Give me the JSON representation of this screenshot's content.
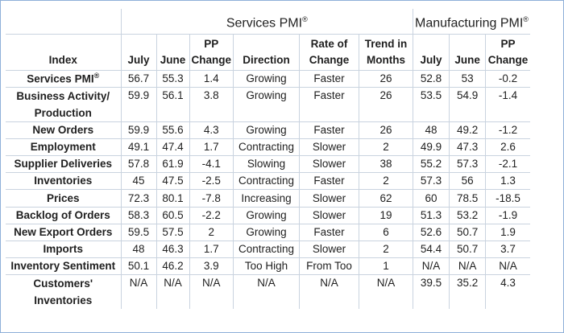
{
  "groups": {
    "services": "Services PMI",
    "manufacturing": "Manufacturing PMI",
    "reg": "®"
  },
  "headers": {
    "index": "Index",
    "july": "July",
    "june": "June",
    "pp_change": "PP Change",
    "direction": "Direction",
    "rate_of_change": "Rate of Change",
    "trend": "Trend in Months",
    "m_july": "July",
    "m_june": "June",
    "m_pp_change": "PP Change"
  },
  "rows": [
    {
      "index": "Services PMI",
      "sup": "®",
      "july": "56.7",
      "june": "55.3",
      "pp": "1.4",
      "direction": "Growing",
      "rate": "Faster",
      "trend": "26",
      "m_july": "52.8",
      "m_june": "53",
      "m_pp": "-0.2"
    },
    {
      "index": "Business Activity/ Production",
      "july": "59.9",
      "june": "56.1",
      "pp": "3.8",
      "direction": "Growing",
      "rate": "Faster",
      "trend": "26",
      "m_july": "53.5",
      "m_june": "54.9",
      "m_pp": "-1.4"
    },
    {
      "index": "New Orders",
      "july": "59.9",
      "june": "55.6",
      "pp": "4.3",
      "direction": "Growing",
      "rate": "Faster",
      "trend": "26",
      "m_july": "48",
      "m_june": "49.2",
      "m_pp": "-1.2"
    },
    {
      "index": "Employment",
      "july": "49.1",
      "june": "47.4",
      "pp": "1.7",
      "direction": "Contracting",
      "rate": "Slower",
      "trend": "2",
      "m_july": "49.9",
      "m_june": "47.3",
      "m_pp": "2.6"
    },
    {
      "index": "Supplier Deliveries",
      "july": "57.8",
      "june": "61.9",
      "pp": "-4.1",
      "direction": "Slowing",
      "rate": "Slower",
      "trend": "38",
      "m_july": "55.2",
      "m_june": "57.3",
      "m_pp": "-2.1"
    },
    {
      "index": "Inventories",
      "july": "45",
      "june": "47.5",
      "pp": "-2.5",
      "direction": "Contracting",
      "rate": "Faster",
      "trend": "2",
      "m_july": "57.3",
      "m_june": "56",
      "m_pp": "1.3"
    },
    {
      "index": "Prices",
      "july": "72.3",
      "june": "80.1",
      "pp": "-7.8",
      "direction": "Increasing",
      "rate": "Slower",
      "trend": "62",
      "m_july": "60",
      "m_june": "78.5",
      "m_pp": "-18.5"
    },
    {
      "index": "Backlog of Orders",
      "july": "58.3",
      "june": "60.5",
      "pp": "-2.2",
      "direction": "Growing",
      "rate": "Slower",
      "trend": "19",
      "m_july": "51.3",
      "m_june": "53.2",
      "m_pp": "-1.9"
    },
    {
      "index": "New Export Orders",
      "july": "59.5",
      "june": "57.5",
      "pp": "2",
      "direction": "Growing",
      "rate": "Faster",
      "trend": "6",
      "m_july": "52.6",
      "m_june": "50.7",
      "m_pp": "1.9"
    },
    {
      "index": "Imports",
      "july": "48",
      "june": "46.3",
      "pp": "1.7",
      "direction": "Contracting",
      "rate": "Slower",
      "trend": "2",
      "m_july": "54.4",
      "m_june": "50.7",
      "m_pp": "3.7"
    },
    {
      "index": "Inventory Sentiment",
      "july": "50.1",
      "june": "46.2",
      "pp": "3.9",
      "direction": "Too High",
      "rate": "From Too",
      "trend": "1",
      "m_july": "N/A",
      "m_june": "N/A",
      "m_pp": "N/A"
    },
    {
      "index": "Customers' Inventories",
      "july": "N/A",
      "june": "N/A",
      "pp": "N/A",
      "direction": "N/A",
      "rate": "N/A",
      "trend": "N/A",
      "m_july": "39.5",
      "m_june": "35.2",
      "m_pp": "4.3"
    }
  ]
}
